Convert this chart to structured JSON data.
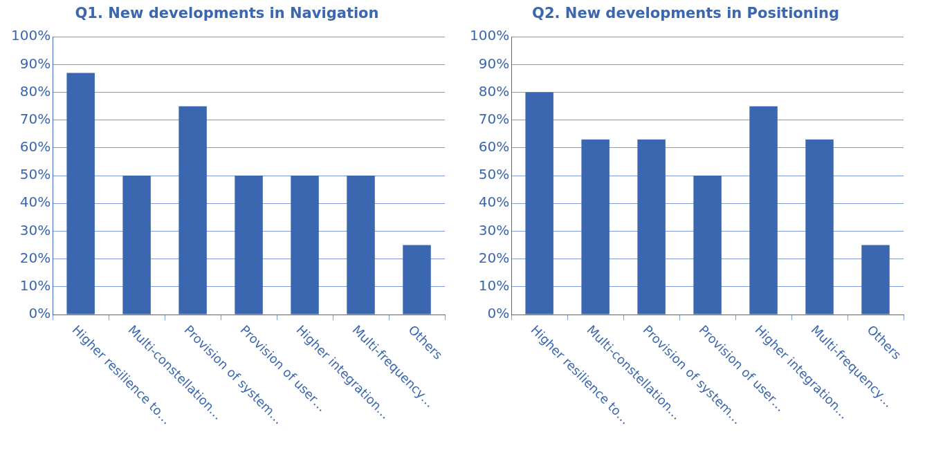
{
  "chart_data": [
    {
      "type": "bar",
      "title": "Q1. New developments in Navigation",
      "categories": [
        "Higher resilience to…",
        "Multi-constellation…",
        "Provision of system…",
        "Provision of user…",
        "Higher integration…",
        "Multi-frequency…",
        "Others"
      ],
      "values": [
        87,
        50,
        75,
        50,
        50,
        50,
        25
      ],
      "color": "#3b67b0",
      "ylim": [
        0,
        100
      ],
      "yticks": [
        {
          "value": 0,
          "label": "0%"
        },
        {
          "value": 10,
          "label": "10%"
        },
        {
          "value": 20,
          "label": "20%"
        },
        {
          "value": 30,
          "label": "30%"
        },
        {
          "value": 40,
          "label": "40%"
        },
        {
          "value": 50,
          "label": "50%"
        },
        {
          "value": 60,
          "label": "60%"
        },
        {
          "value": 70,
          "label": "70%"
        },
        {
          "value": 80,
          "label": "80%"
        },
        {
          "value": 90,
          "label": "90%"
        },
        {
          "value": 100,
          "label": "100%"
        }
      ],
      "grid": "y"
    },
    {
      "type": "bar",
      "title": "Q2. New developments in Positioning",
      "categories": [
        "Higher resilience to…",
        "Multi-constellation…",
        "Provision of system…",
        "Provision of user…",
        "Higher integration…",
        "Multi-frequency…",
        "Others"
      ],
      "values": [
        80,
        63,
        63,
        50,
        75,
        63,
        25
      ],
      "color": "#3b67b0",
      "ylim": [
        0,
        100
      ],
      "yticks": [
        {
          "value": 0,
          "label": "0%"
        },
        {
          "value": 10,
          "label": "10%"
        },
        {
          "value": 20,
          "label": "20%"
        },
        {
          "value": 30,
          "label": "30%"
        },
        {
          "value": 40,
          "label": "40%"
        },
        {
          "value": 50,
          "label": "50%"
        },
        {
          "value": 60,
          "label": "60%"
        },
        {
          "value": 70,
          "label": "70%"
        },
        {
          "value": 80,
          "label": "80%"
        },
        {
          "value": 90,
          "label": "90%"
        },
        {
          "value": 100,
          "label": "100%"
        }
      ],
      "grid": "y"
    }
  ]
}
